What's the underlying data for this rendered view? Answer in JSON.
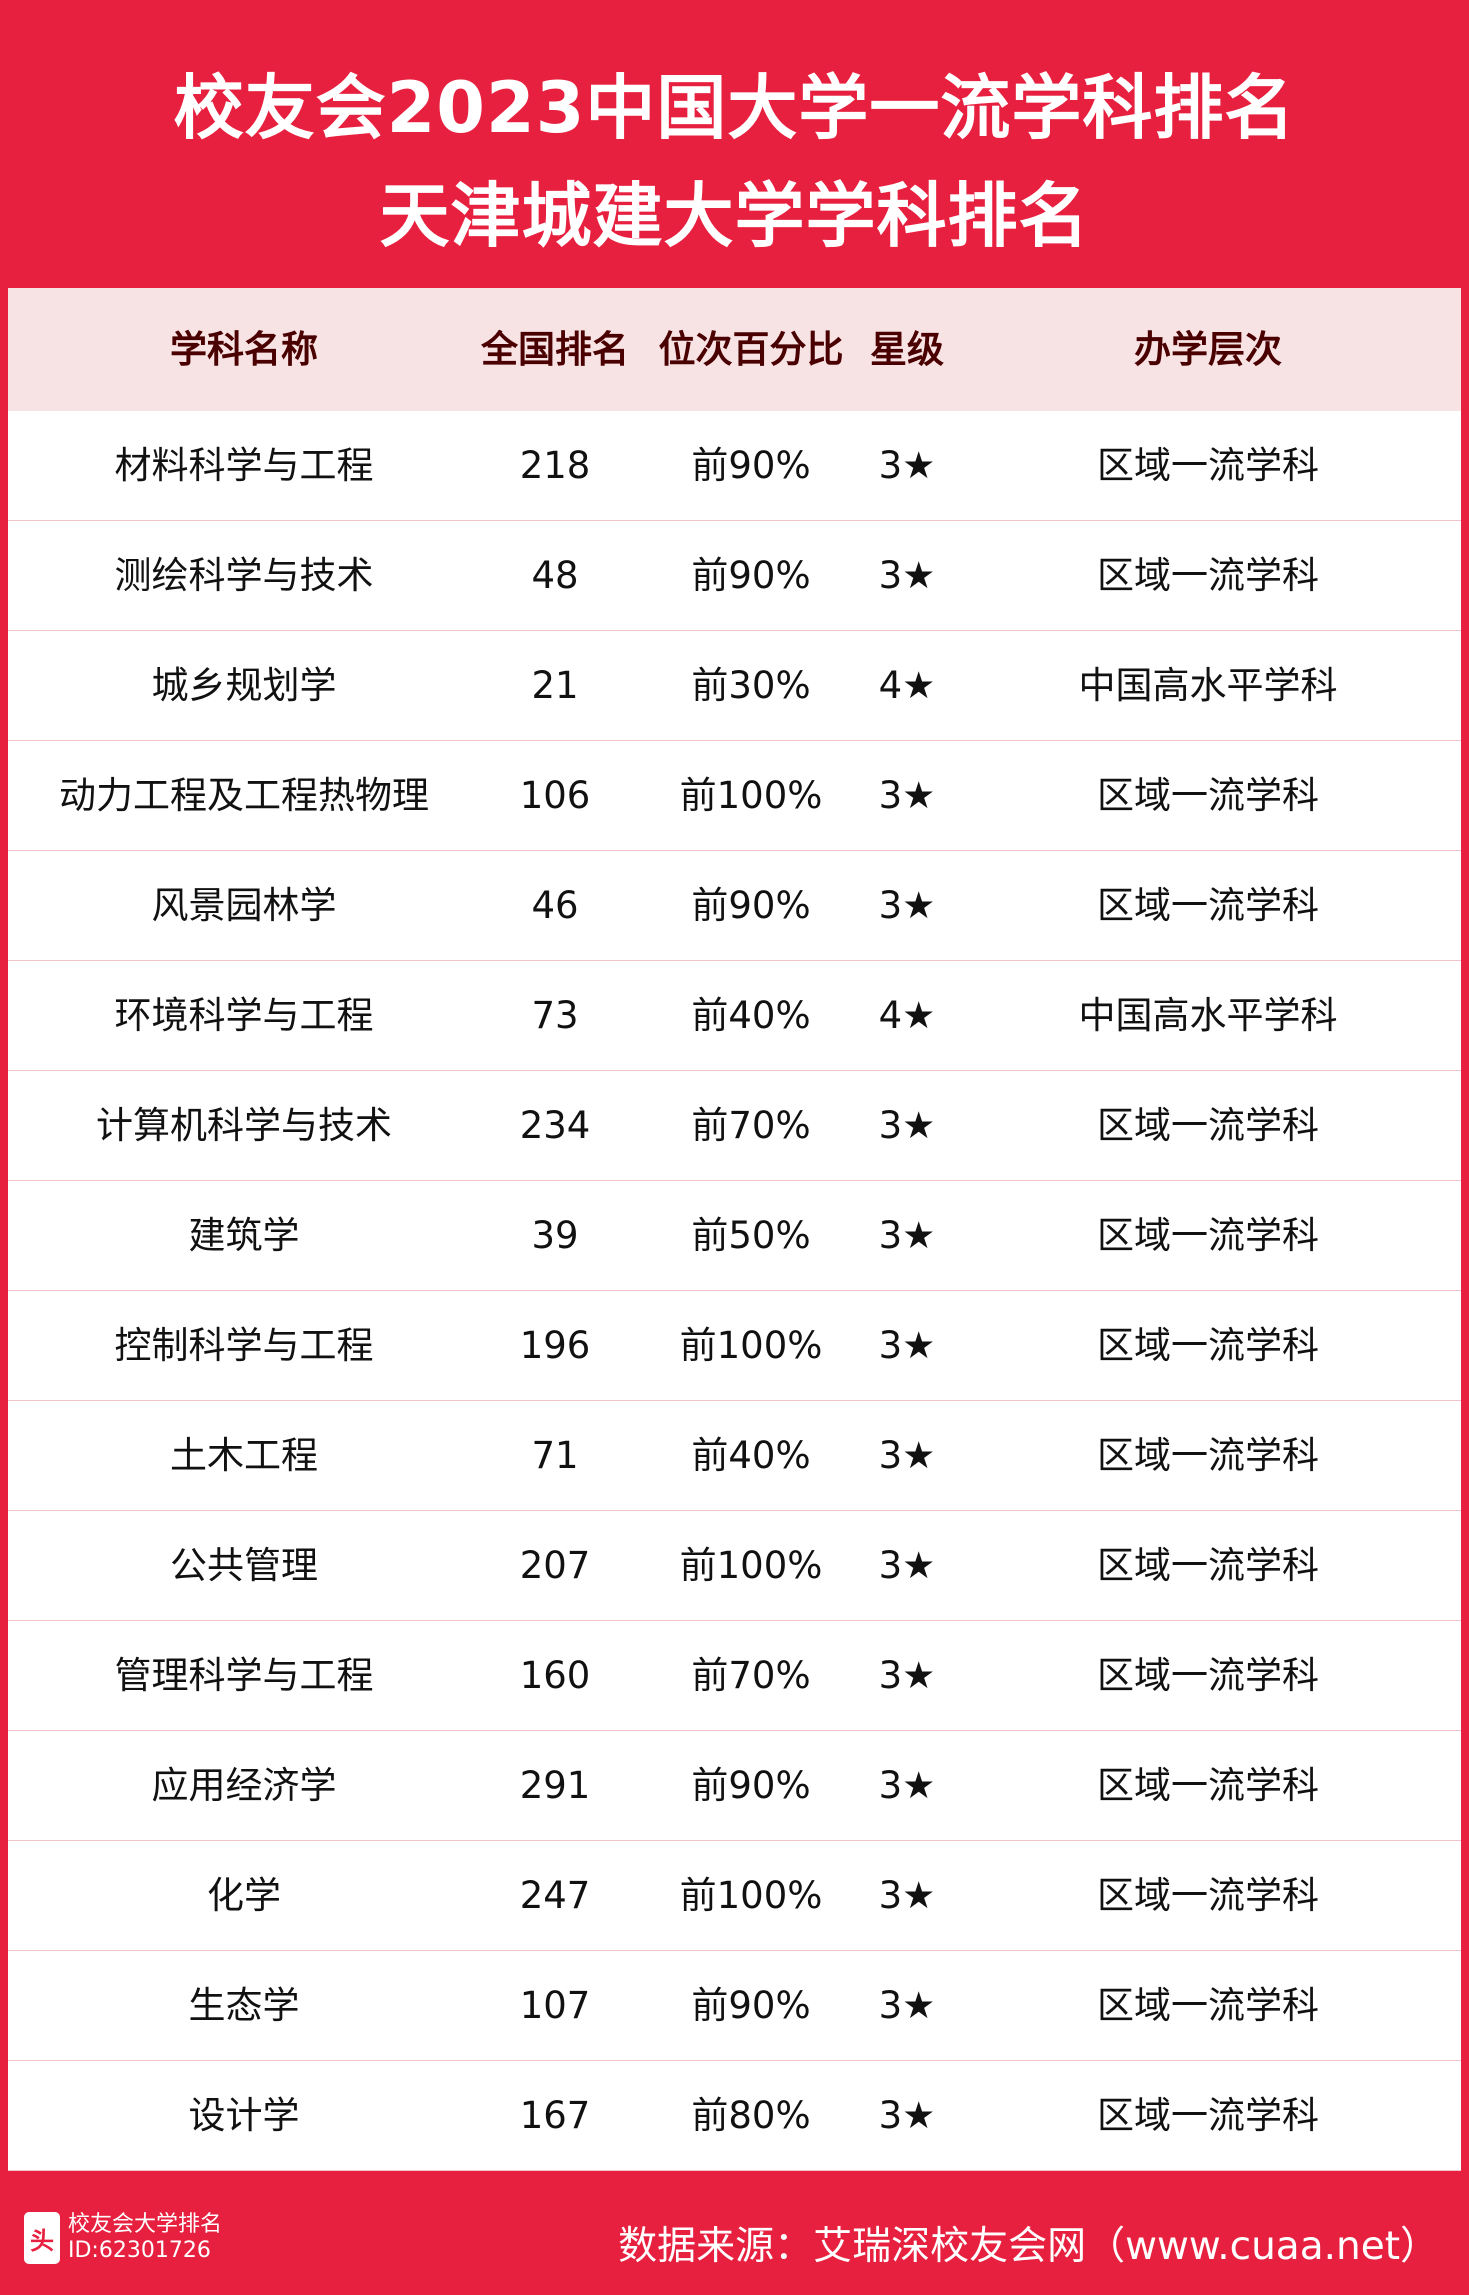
{
  "title": {
    "line1": "校友会2023中国大学一流学科排名",
    "line2": "天津城建大学学科排名"
  },
  "table": {
    "headers": [
      "学科名称",
      "全国排名",
      "位次百分比",
      "星级",
      "办学层次"
    ],
    "rows": [
      [
        "材料科学与工程",
        "218",
        "前90%",
        "3★",
        "区域一流学科"
      ],
      [
        "测绘科学与技术",
        "48",
        "前90%",
        "3★",
        "区域一流学科"
      ],
      [
        "城乡规划学",
        "21",
        "前30%",
        "4★",
        "中国高水平学科"
      ],
      [
        "动力工程及工程热物理",
        "106",
        "前100%",
        "3★",
        "区域一流学科"
      ],
      [
        "风景园林学",
        "46",
        "前90%",
        "3★",
        "区域一流学科"
      ],
      [
        "环境科学与工程",
        "73",
        "前40%",
        "4★",
        "中国高水平学科"
      ],
      [
        "计算机科学与技术",
        "234",
        "前70%",
        "3★",
        "区域一流学科"
      ],
      [
        "建筑学",
        "39",
        "前50%",
        "3★",
        "区域一流学科"
      ],
      [
        "控制科学与工程",
        "196",
        "前100%",
        "3★",
        "区域一流学科"
      ],
      [
        "土木工程",
        "71",
        "前40%",
        "3★",
        "区域一流学科"
      ],
      [
        "公共管理",
        "207",
        "前100%",
        "3★",
        "区域一流学科"
      ],
      [
        "管理科学与工程",
        "160",
        "前70%",
        "3★",
        "区域一流学科"
      ],
      [
        "应用经济学",
        "291",
        "前90%",
        "3★",
        "区域一流学科"
      ],
      [
        "化学",
        "247",
        "前100%",
        "3★",
        "区域一流学科"
      ],
      [
        "生态学",
        "107",
        "前90%",
        "3★",
        "区域一流学科"
      ],
      [
        "设计学",
        "167",
        "前80%",
        "3★",
        "区域一流学科"
      ]
    ]
  },
  "footer": {
    "source": "数据来源：艾瑞深校友会网（www.cuaa.net）"
  },
  "watermark": {
    "logo": "头条",
    "name": "校友会大学排名",
    "id": "ID:62301726"
  },
  "colors": {
    "brand_red": "#e8203f",
    "header_bg": "#f8e3e4",
    "header_text": "#4a0000"
  }
}
